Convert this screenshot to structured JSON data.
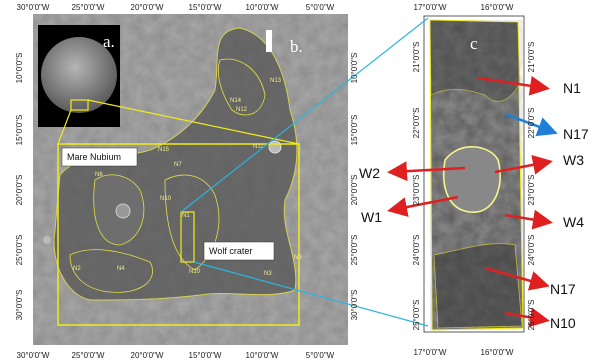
{
  "panel_a": {
    "label": "a."
  },
  "panel_b": {
    "label": "b.",
    "longitudes": [
      "30°0'0\"W",
      "25°0'0\"W",
      "20°0'0\"W",
      "15°0'0\"W",
      "10°0'0\"W",
      "5°0'0\"W"
    ],
    "latitudes": [
      "10°0'0\"S",
      "15°0'0\"S",
      "20°0'0\"S",
      "25°0'0\"S",
      "30°0'0\"S"
    ],
    "regions": [
      "Mare Nubium",
      "Wolf crater"
    ],
    "units": [
      "N13",
      "N14",
      "N12",
      "N11",
      "N15",
      "N7",
      "N6",
      "N10",
      "N1",
      "N2",
      "N4",
      "N10",
      "N3",
      "N9"
    ]
  },
  "panel_c": {
    "label": "c",
    "longitudes": [
      "17°0'0\"W",
      "16°0'0\"W"
    ],
    "latitudes": [
      "21°0'0\"S",
      "22°0'0\"S",
      "23°0'0\"S",
      "24°0'0\"S",
      "25°0'0\"S"
    ],
    "annotations": [
      "N1",
      "N17",
      "W3",
      "W2",
      "W1",
      "W4",
      "N17",
      "N10"
    ]
  }
}
